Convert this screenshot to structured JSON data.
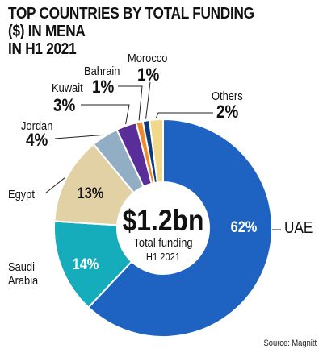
{
  "chart_data": {
    "type": "pie",
    "style": "donut",
    "title": "TOP COUNTRIES BY TOTAL FUNDING ($) IN MENA\nIN H1 2021",
    "center_value": "$1.2bn",
    "center_caption": [
      "Total funding",
      "H1 2021"
    ],
    "slices": [
      {
        "label": "UAE",
        "value": 62,
        "display": "62%",
        "color": "#1f63c2"
      },
      {
        "label": "Saudi Arabia",
        "value": 14,
        "display": "14%",
        "color": "#15adbb"
      },
      {
        "label": "Egypt",
        "value": 13,
        "display": "13%",
        "color": "#e1d1a5"
      },
      {
        "label": "Jordan",
        "value": 4,
        "display": "4%",
        "color": "#92aec4"
      },
      {
        "label": "Kuwait",
        "value": 3,
        "display": "3%",
        "color": "#5a2e99"
      },
      {
        "label": "Bahrain",
        "value": 1,
        "display": "1%",
        "color": "#f0892c"
      },
      {
        "label": "Morocco",
        "value": 1,
        "display": "1%",
        "color": "#0d3a78"
      },
      {
        "label": "Others",
        "value": 2,
        "display": "2%",
        "color": "#f0d789"
      }
    ],
    "source": "Source: Magnitt"
  }
}
